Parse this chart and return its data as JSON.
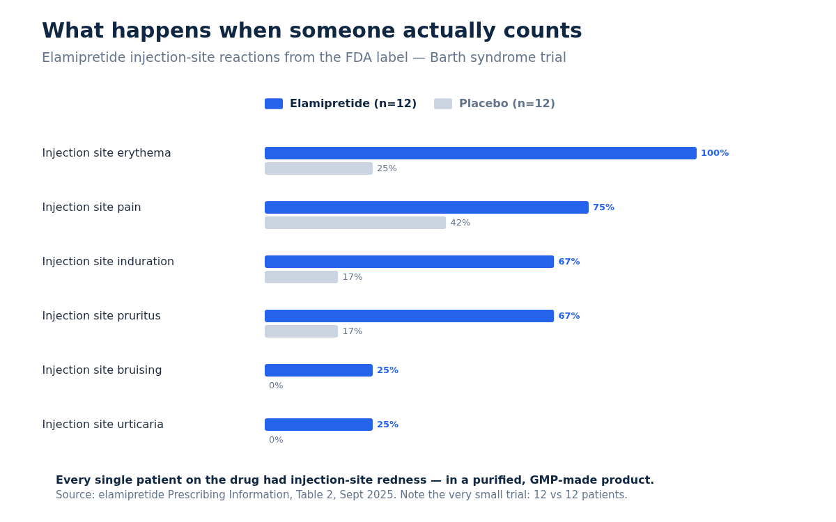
{
  "chart_data": {
    "type": "bar",
    "orientation": "horizontal",
    "title": "What happens when someone actually counts",
    "subtitle": "Elamipretide injection-site reactions from the FDA label — Barth syndrome trial",
    "categories": [
      "Injection site erythema",
      "Injection site pain",
      "Injection site induration",
      "Injection site pruritus",
      "Injection site bruising",
      "Injection site urticaria"
    ],
    "series": [
      {
        "name": "Elamipretide (n=12)",
        "color": "#2563eb",
        "values": [
          100,
          75,
          67,
          67,
          25,
          25
        ],
        "value_labels": [
          "100%",
          "75%",
          "67%",
          "67%",
          "25%",
          "25%"
        ]
      },
      {
        "name": "Placebo (n=12)",
        "color": "#cbd5e1",
        "values": [
          25,
          42,
          17,
          17,
          0,
          0
        ],
        "value_labels": [
          "25%",
          "42%",
          "17%",
          "17%",
          "0%",
          "0%"
        ]
      }
    ],
    "legend": "top",
    "tick_labels": "y",
    "annotations": [
      "Every single patient on the drug had injection-site redness — in a purified, GMP-made product.",
      "Source: elamipretide Prescribing Information, Table 2, Sept 2025. Note the very small trial: 12 vs 12 patients."
    ]
  }
}
